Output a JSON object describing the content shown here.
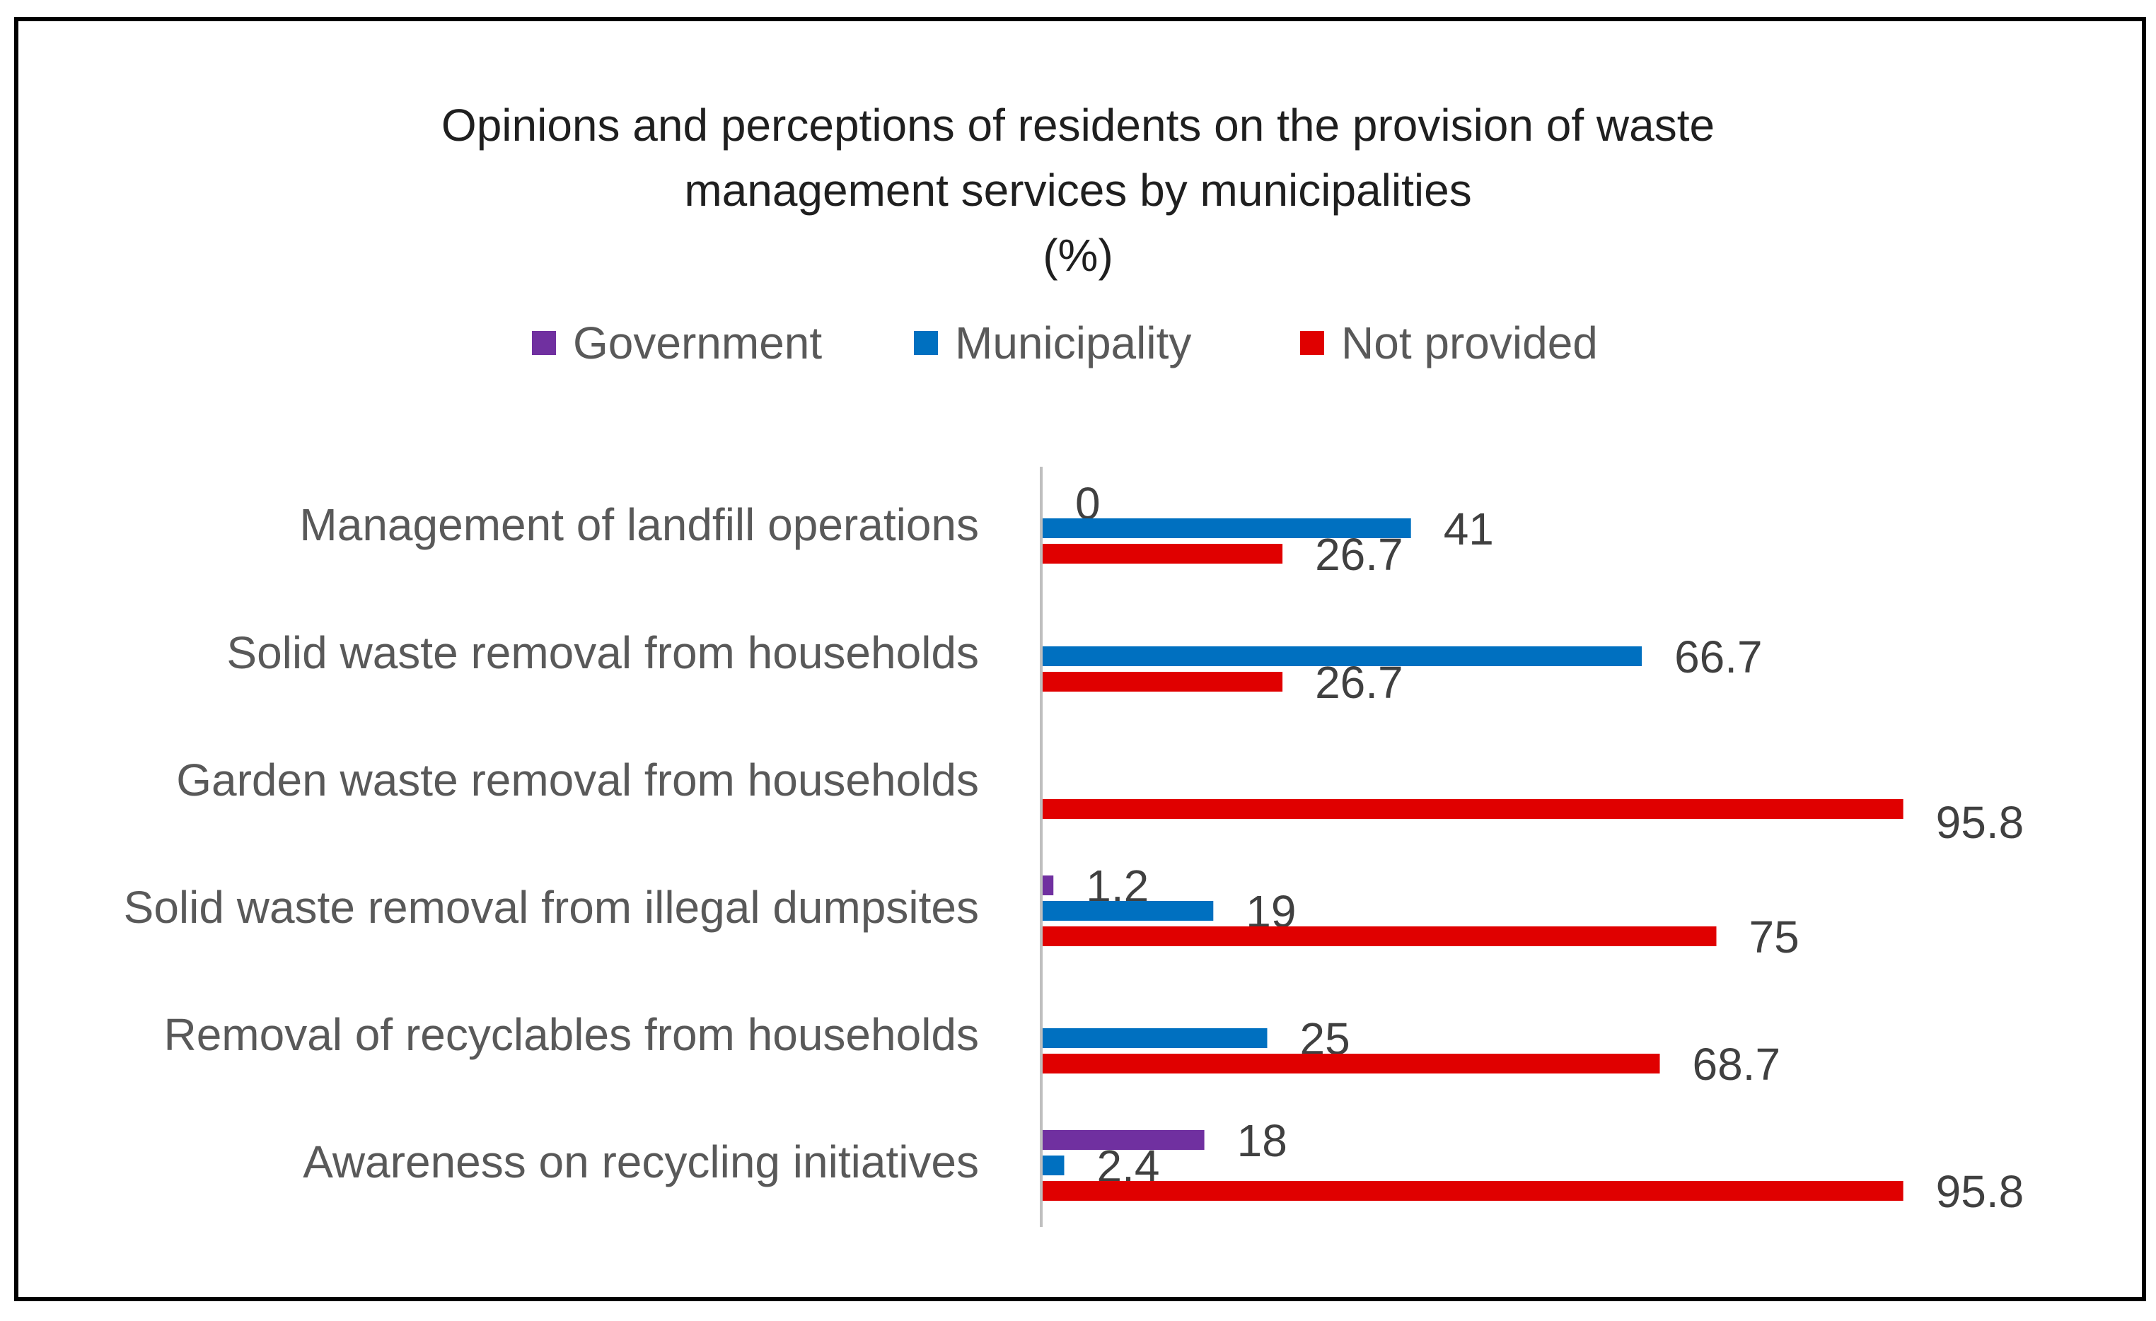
{
  "chart_data": {
    "type": "bar",
    "orientation": "horizontal",
    "title_lines": [
      "Opinions and perceptions of residents on the provision of waste",
      "management services by municipalities",
      "(%)"
    ],
    "xlim": [
      0,
      100
    ],
    "grid": false,
    "legend_position": "top",
    "categories": [
      "Management of landfill operations",
      "Solid waste removal from households",
      "Garden waste removal from households",
      "Solid waste removal from illegal dumpsites",
      "Removal of recyclables from households",
      "Awareness on recycling initiatives"
    ],
    "series": [
      {
        "name": "Government",
        "color": "#7030A0",
        "values": [
          0,
          null,
          null,
          1.2,
          null,
          18
        ],
        "labels": [
          "0",
          "",
          "",
          "1.2",
          "",
          "18"
        ]
      },
      {
        "name": "Municipality",
        "color": "#0070C0",
        "values": [
          41,
          66.7,
          null,
          19,
          25,
          2.4
        ],
        "labels": [
          "41",
          "66.7",
          "",
          "19",
          "25",
          "2.4"
        ]
      },
      {
        "name": "Not provided",
        "color": "#E00000",
        "values": [
          26.7,
          26.7,
          95.8,
          75,
          68.7,
          95.8
        ],
        "labels": [
          "26.7",
          "26.7",
          "",
          "75",
          "68.7",
          "95.8"
        ]
      }
    ],
    "garden_not_provided_label": "95.8"
  }
}
